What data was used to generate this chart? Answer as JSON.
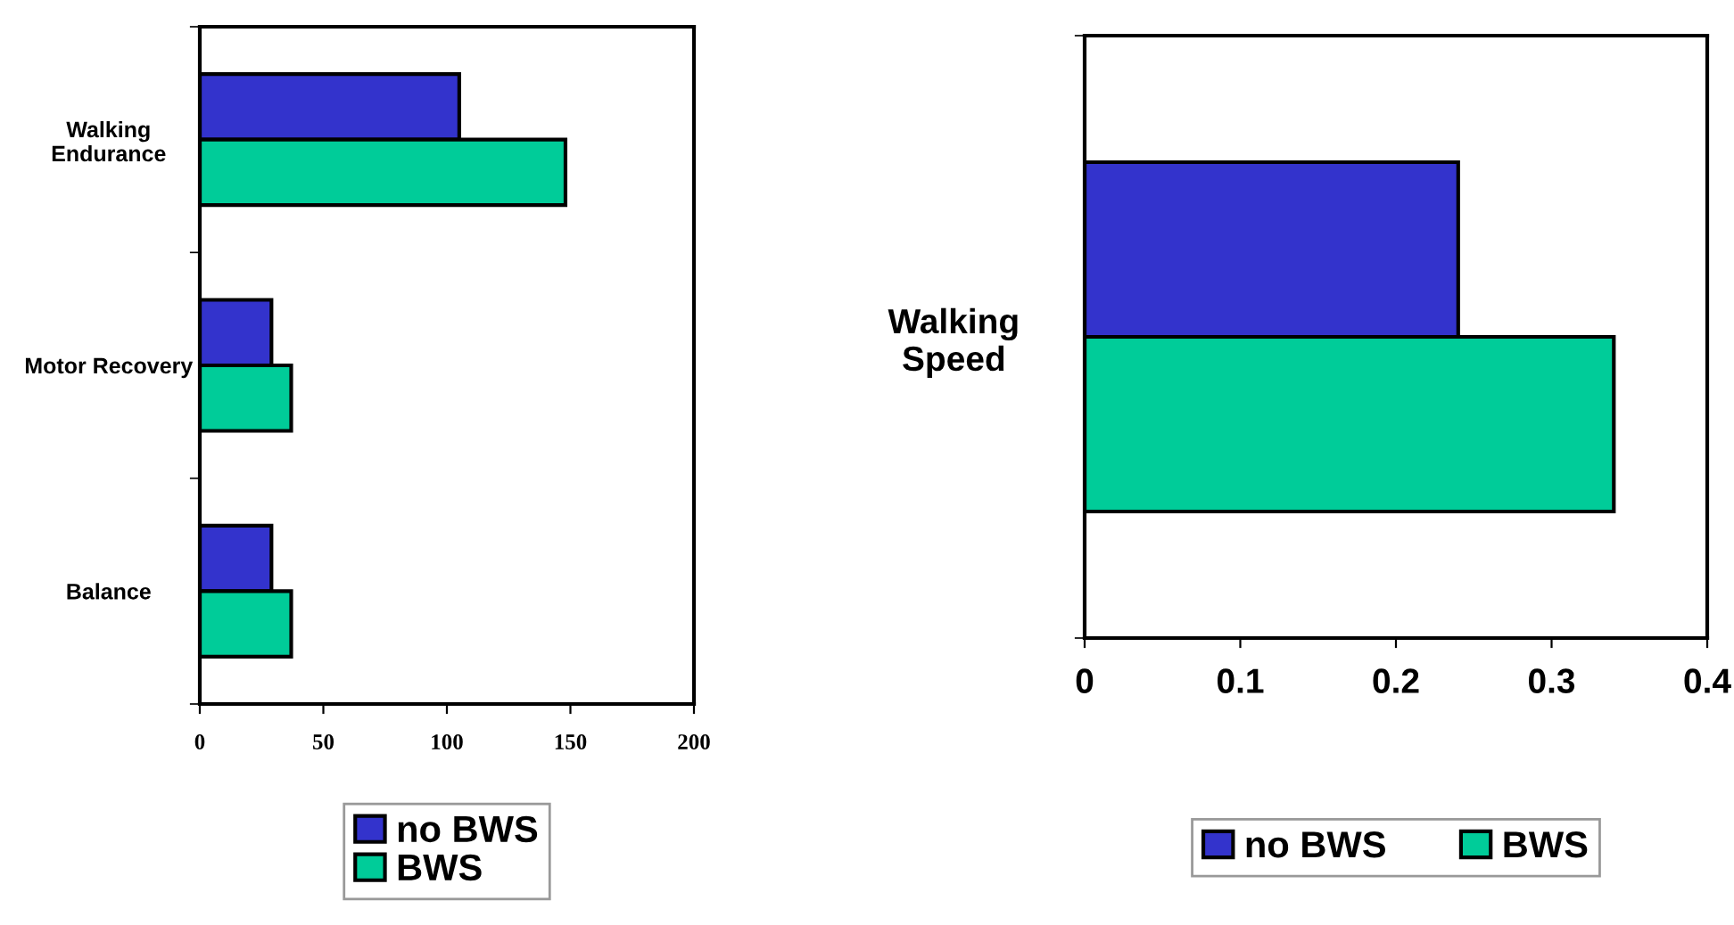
{
  "chart_data": [
    {
      "type": "bar",
      "orientation": "horizontal",
      "categories": [
        "Walking\nEndurance",
        "Motor Recovery",
        "Balance"
      ],
      "series": [
        {
          "name": "no BWS",
          "color": "#3333cc",
          "values": [
            105,
            29,
            29
          ]
        },
        {
          "name": "BWS",
          "color": "#00cc99",
          "values": [
            148,
            37,
            37
          ]
        }
      ],
      "xlim": [
        0,
        200
      ],
      "xticks": [
        0,
        50,
        100,
        150,
        200
      ],
      "grid": false,
      "legend": "bottom"
    },
    {
      "type": "bar",
      "orientation": "horizontal",
      "categories": [
        "Walking\nSpeed"
      ],
      "series": [
        {
          "name": "no BWS",
          "color": "#3333cc",
          "values": [
            0.24
          ]
        },
        {
          "name": "BWS",
          "color": "#00cc99",
          "values": [
            0.34
          ]
        }
      ],
      "xlim": [
        0,
        0.4
      ],
      "xticks": [
        0,
        0.1,
        0.2,
        0.3,
        0.4
      ],
      "grid": false,
      "legend": "bottom"
    }
  ]
}
